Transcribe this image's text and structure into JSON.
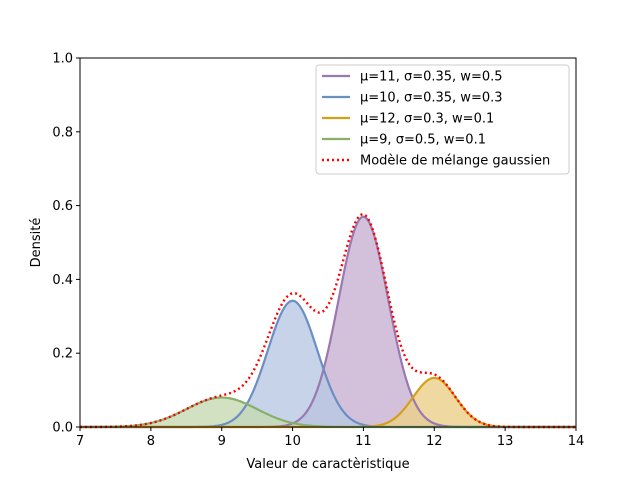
{
  "chart_data": {
    "type": "line",
    "xlabel": "Valeur de caractèristique",
    "ylabel": "Densité",
    "xlim": [
      7,
      14
    ],
    "ylim": [
      0,
      1.0
    ],
    "xticks": [
      "7",
      "8",
      "9",
      "10",
      "11",
      "12",
      "13",
      "14"
    ],
    "yticks": [
      "0.0",
      "0.2",
      "0.4",
      "0.6",
      "0.8",
      "1.0"
    ],
    "grid": false,
    "legend_position": "top-right",
    "components": [
      {
        "name": "μ=11, σ=0.35, w=0.5",
        "mu": 11,
        "sigma": 0.35,
        "weight": 0.5,
        "color": "#9a78b0",
        "fill": "#c8b2d3"
      },
      {
        "name": "μ=10, σ=0.35, w=0.3",
        "mu": 10,
        "sigma": 0.35,
        "weight": 0.3,
        "color": "#6b8fc2",
        "fill": "#b9c8e2"
      },
      {
        "name": "μ=12, σ=0.3, w=0.1",
        "mu": 12,
        "sigma": 0.3,
        "weight": 0.1,
        "color": "#d4a017",
        "fill": "#ecd08a"
      },
      {
        "name": "μ=9, σ=0.5, w=0.1",
        "mu": 9,
        "sigma": 0.5,
        "weight": 0.1,
        "color": "#88b06a",
        "fill": "#c5d9b3"
      }
    ],
    "mixture": {
      "name": "Modèle de mélange gaussien",
      "color": "#ff0000",
      "style": "dotted"
    }
  }
}
